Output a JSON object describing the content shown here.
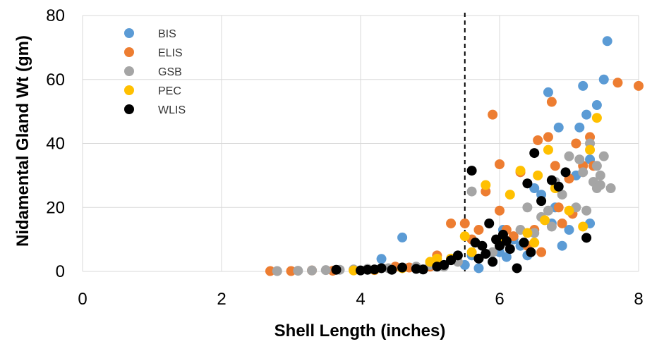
{
  "chart_data": {
    "type": "scatter",
    "title": "",
    "xlabel": "Shell Length (inches)",
    "ylabel": "Nidamental Gland Wt (gm)",
    "xlim": [
      0,
      8
    ],
    "ylim": [
      0,
      80
    ],
    "xticks": [
      0,
      2,
      4,
      6,
      8
    ],
    "yticks": [
      0,
      20,
      40,
      60,
      80
    ],
    "grid": true,
    "legend": "top-left",
    "reference_line": {
      "x": 5.5,
      "style": "dashed",
      "color": "#000000"
    },
    "series": [
      {
        "name": "BIS",
        "color": "#5B9BD5",
        "points": [
          [
            4.3,
            3.9
          ],
          [
            4.6,
            10.6
          ],
          [
            5.1,
            1.5
          ],
          [
            5.3,
            4
          ],
          [
            5.5,
            2
          ],
          [
            5.6,
            5
          ],
          [
            5.7,
            1
          ],
          [
            5.9,
            3
          ],
          [
            6.0,
            6
          ],
          [
            6.05,
            13
          ],
          [
            6.1,
            4.5
          ],
          [
            6.3,
            8
          ],
          [
            6.4,
            5
          ],
          [
            6.5,
            26
          ],
          [
            6.6,
            24
          ],
          [
            6.7,
            56
          ],
          [
            6.75,
            15
          ],
          [
            6.85,
            45
          ],
          [
            6.9,
            8
          ],
          [
            7.0,
            13
          ],
          [
            7.1,
            30
          ],
          [
            7.15,
            45
          ],
          [
            7.2,
            58
          ],
          [
            7.25,
            49
          ],
          [
            7.3,
            15
          ],
          [
            7.3,
            35
          ],
          [
            7.4,
            52
          ],
          [
            7.5,
            60
          ],
          [
            7.55,
            72
          ],
          [
            6.2,
            10
          ],
          [
            6.8,
            20
          ]
        ]
      },
      {
        "name": "ELIS",
        "color": "#ED7D31",
        "points": [
          [
            2.7,
            0.1
          ],
          [
            3.0,
            0.1
          ],
          [
            3.3,
            0.3
          ],
          [
            3.6,
            0.2
          ],
          [
            3.9,
            0.5
          ],
          [
            4.2,
            0.4
          ],
          [
            4.5,
            1.5
          ],
          [
            4.7,
            1.2
          ],
          [
            5.0,
            1.5
          ],
          [
            5.1,
            5
          ],
          [
            5.3,
            15
          ],
          [
            5.5,
            15
          ],
          [
            5.6,
            10
          ],
          [
            5.7,
            13
          ],
          [
            5.8,
            25
          ],
          [
            5.9,
            49
          ],
          [
            6.0,
            33.5
          ],
          [
            6.0,
            19
          ],
          [
            6.1,
            13
          ],
          [
            6.2,
            11
          ],
          [
            6.3,
            31
          ],
          [
            6.4,
            8
          ],
          [
            6.5,
            13
          ],
          [
            6.55,
            41
          ],
          [
            6.6,
            6
          ],
          [
            6.7,
            42
          ],
          [
            6.75,
            53
          ],
          [
            6.8,
            33
          ],
          [
            6.85,
            20
          ],
          [
            6.9,
            15
          ],
          [
            7.0,
            29
          ],
          [
            7.05,
            18
          ],
          [
            7.1,
            40
          ],
          [
            7.2,
            33
          ],
          [
            7.3,
            42
          ],
          [
            7.35,
            33
          ],
          [
            7.7,
            59
          ],
          [
            8.0,
            58
          ]
        ]
      },
      {
        "name": "GSB",
        "color": "#A5A5A5",
        "points": [
          [
            2.8,
            0.1
          ],
          [
            3.1,
            0.2
          ],
          [
            3.3,
            0.3
          ],
          [
            3.5,
            0.4
          ],
          [
            3.7,
            0.5
          ],
          [
            3.9,
            0.6
          ],
          [
            4.1,
            0.8
          ],
          [
            4.4,
            1
          ],
          [
            4.6,
            1.2
          ],
          [
            4.8,
            1.5
          ],
          [
            5.0,
            2
          ],
          [
            5.2,
            1.5
          ],
          [
            5.4,
            3
          ],
          [
            5.6,
            25
          ],
          [
            5.7,
            4
          ],
          [
            5.9,
            6
          ],
          [
            6.1,
            9
          ],
          [
            6.3,
            13
          ],
          [
            6.4,
            20
          ],
          [
            6.5,
            12
          ],
          [
            6.6,
            17
          ],
          [
            6.7,
            19
          ],
          [
            6.8,
            28
          ],
          [
            6.9,
            24
          ],
          [
            7.0,
            36
          ],
          [
            7.1,
            20
          ],
          [
            7.15,
            35
          ],
          [
            7.2,
            31
          ],
          [
            7.25,
            19
          ],
          [
            7.3,
            40
          ],
          [
            7.35,
            28
          ],
          [
            7.4,
            26
          ],
          [
            7.45,
            30
          ],
          [
            7.5,
            36
          ],
          [
            7.6,
            26
          ],
          [
            7.4,
            33
          ],
          [
            7.45,
            27
          ],
          [
            6.75,
            14
          ]
        ]
      },
      {
        "name": "PEC",
        "color": "#FFC000",
        "points": [
          [
            3.9,
            0.3
          ],
          [
            4.2,
            0.5
          ],
          [
            4.6,
            1
          ],
          [
            5.0,
            3
          ],
          [
            5.1,
            4
          ],
          [
            5.3,
            4
          ],
          [
            5.5,
            11
          ],
          [
            5.6,
            6
          ],
          [
            5.8,
            27
          ],
          [
            6.0,
            9
          ],
          [
            6.15,
            24
          ],
          [
            6.3,
            31.5
          ],
          [
            6.4,
            12
          ],
          [
            6.5,
            9
          ],
          [
            6.55,
            30
          ],
          [
            6.7,
            38
          ],
          [
            6.8,
            26
          ],
          [
            7.0,
            19
          ],
          [
            7.2,
            14
          ],
          [
            7.3,
            38
          ],
          [
            7.4,
            48
          ],
          [
            6.65,
            16
          ]
        ]
      },
      {
        "name": "WLIS",
        "color": "#000000",
        "points": [
          [
            3.65,
            0.5
          ],
          [
            4.0,
            0.3
          ],
          [
            4.1,
            0.5
          ],
          [
            4.2,
            0.6
          ],
          [
            4.3,
            1
          ],
          [
            4.45,
            0.5
          ],
          [
            4.6,
            1.2
          ],
          [
            4.8,
            0.8
          ],
          [
            4.9,
            0.6
          ],
          [
            5.1,
            1.5
          ],
          [
            5.2,
            2
          ],
          [
            5.3,
            3.5
          ],
          [
            5.4,
            5
          ],
          [
            5.6,
            31.5
          ],
          [
            5.65,
            9
          ],
          [
            5.7,
            4
          ],
          [
            5.75,
            8
          ],
          [
            5.8,
            5.5
          ],
          [
            5.85,
            15
          ],
          [
            5.9,
            3
          ],
          [
            5.95,
            10
          ],
          [
            6.0,
            8
          ],
          [
            6.05,
            11.5
          ],
          [
            6.1,
            9.5
          ],
          [
            6.15,
            7
          ],
          [
            6.25,
            1
          ],
          [
            6.4,
            27.5
          ],
          [
            6.45,
            6
          ],
          [
            6.5,
            37
          ],
          [
            6.6,
            22
          ],
          [
            6.75,
            28.5
          ],
          [
            6.85,
            26.5
          ],
          [
            6.95,
            31
          ],
          [
            7.25,
            10.5
          ],
          [
            6.35,
            9
          ]
        ]
      }
    ]
  }
}
